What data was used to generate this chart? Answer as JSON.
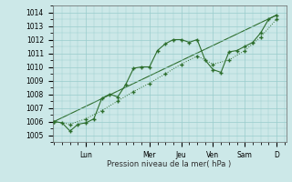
{
  "xlabel": "Pression niveau de la mer( hPa )",
  "background_color": "#cce8e8",
  "line_color": "#2d6e2d",
  "grid_color": "#99cccc",
  "ylim": [
    1004.5,
    1014.5
  ],
  "yticks": [
    1005,
    1006,
    1007,
    1008,
    1009,
    1010,
    1011,
    1012,
    1013,
    1014
  ],
  "day_labels": [
    "Lun",
    "Mer",
    "Jeu",
    "Ven",
    "Sam",
    "D"
  ],
  "day_positions": [
    1.0,
    3.0,
    4.0,
    5.0,
    6.0,
    7.0
  ],
  "xlim": [
    -0.05,
    7.3
  ],
  "series1_x": [
    0.0,
    0.25,
    0.5,
    0.75,
    1.0,
    1.25,
    1.5,
    1.75,
    2.0,
    2.25,
    2.5,
    2.75,
    3.0,
    3.25,
    3.5,
    3.75,
    4.0,
    4.25,
    4.5,
    4.75,
    5.0,
    5.25,
    5.5,
    5.75,
    6.0,
    6.25,
    6.5,
    6.75,
    7.0
  ],
  "series1_y": [
    1006.0,
    1005.9,
    1005.3,
    1005.8,
    1005.9,
    1006.2,
    1007.7,
    1008.0,
    1007.8,
    1008.7,
    1009.9,
    1010.0,
    1010.0,
    1011.2,
    1011.7,
    1012.0,
    1012.0,
    1011.8,
    1012.0,
    1010.5,
    1009.8,
    1009.6,
    1011.1,
    1011.2,
    1011.5,
    1011.8,
    1012.5,
    1013.5,
    1013.8
  ],
  "series2_x": [
    0.0,
    0.5,
    1.0,
    1.5,
    2.0,
    2.5,
    3.0,
    3.5,
    4.0,
    4.5,
    5.0,
    5.5,
    6.0,
    6.5,
    7.0
  ],
  "series2_y": [
    1006.0,
    1005.8,
    1006.2,
    1006.8,
    1007.5,
    1008.2,
    1008.8,
    1009.5,
    1010.2,
    1010.8,
    1010.2,
    1010.5,
    1011.2,
    1012.2,
    1013.5
  ],
  "series3_x": [
    0.0,
    7.0
  ],
  "series3_y": [
    1006.0,
    1013.8
  ]
}
